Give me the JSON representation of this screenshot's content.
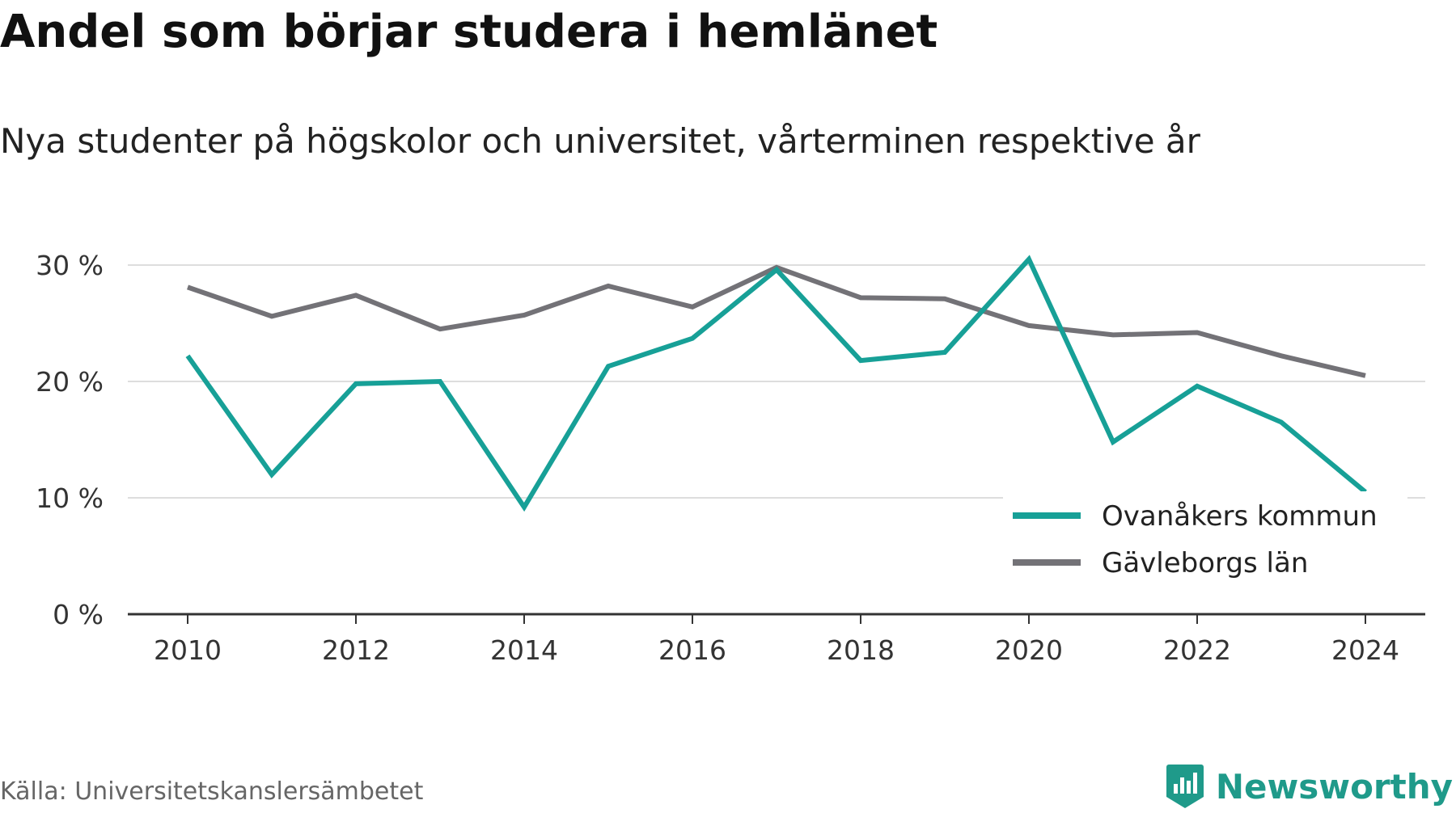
{
  "chart_data": {
    "type": "line",
    "title": "Andel som börjar studera i hemlänet",
    "subtitle": "Nya studenter på högskolor och universitet, vårterminen respektive år",
    "x": [
      2010,
      2011,
      2012,
      2013,
      2014,
      2015,
      2016,
      2017,
      2018,
      2019,
      2020,
      2021,
      2022,
      2023,
      2024
    ],
    "x_ticks": [
      2010,
      2012,
      2014,
      2016,
      2018,
      2020,
      2022,
      2024
    ],
    "y_ticks": [
      0,
      10,
      20,
      30
    ],
    "y_tick_labels": [
      "0 %",
      "10 %",
      "20 %",
      "30 %"
    ],
    "ylim": [
      0,
      32
    ],
    "grid": true,
    "legend_position": "bottom-right",
    "series": [
      {
        "name": "Ovanåkers kommun",
        "color": "#17a097",
        "values": [
          22.2,
          12.0,
          19.8,
          20.0,
          9.2,
          21.3,
          23.7,
          29.6,
          21.8,
          22.5,
          30.5,
          14.8,
          19.6,
          16.5,
          10.5
        ]
      },
      {
        "name": "Gävleborgs län",
        "color": "#737277",
        "values": [
          28.1,
          25.6,
          27.4,
          24.5,
          25.7,
          28.2,
          26.4,
          29.8,
          27.2,
          27.1,
          24.8,
          24.0,
          24.2,
          22.2,
          20.5
        ]
      }
    ]
  },
  "source": "Källa: Universitetskanslersämbetet",
  "brand": {
    "name": "Newsworthy",
    "color": "#1f9a8a"
  }
}
